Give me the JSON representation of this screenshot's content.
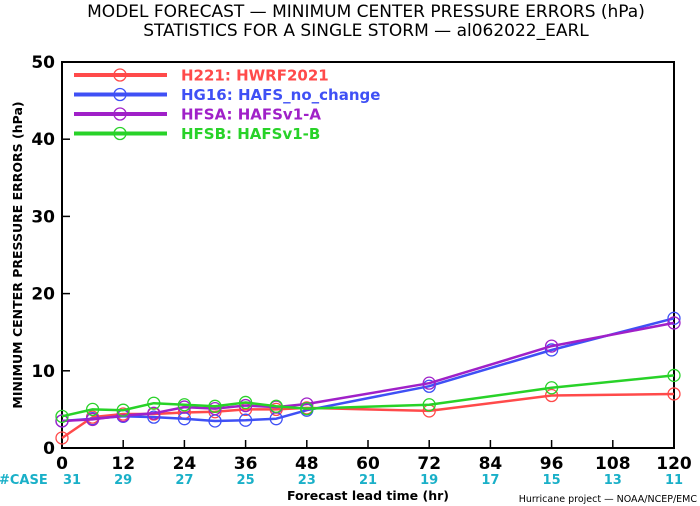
{
  "chart_data": {
    "type": "line",
    "title": "MODEL FORECAST — MINIMUM CENTER PRESSURE ERRORS (hPa)",
    "subtitle": "STATISTICS FOR A SINGLE STORM — al062022_EARL",
    "xlabel": "Forecast lead time (hr)",
    "ylabel": "MINIMUM CENTER PRESSURE ERRORS (hPa)",
    "xlim": [
      0,
      120
    ],
    "ylim": [
      0,
      50
    ],
    "x_ticks": [
      0,
      12,
      24,
      36,
      48,
      60,
      72,
      84,
      96,
      108,
      120
    ],
    "y_ticks": [
      0,
      10,
      20,
      30,
      40,
      50
    ],
    "grid": false,
    "legend_position": "top-left",
    "case_label": "#CASE",
    "case_counts": [
      "31",
      "29",
      "27",
      "25",
      "23",
      "21",
      "19",
      "17",
      "15",
      "13",
      "11"
    ],
    "credit": "Hurricane project — NOAA/NCEP/EMC",
    "series": [
      {
        "name": "H221:  HWRF2021",
        "color": "#ff4a4a",
        "x": [
          0,
          6,
          12,
          18,
          24,
          30,
          36,
          42,
          48,
          72,
          96,
          120
        ],
        "values": [
          1.3,
          4.0,
          4.4,
          4.4,
          4.6,
          4.7,
          5.0,
          5.0,
          5.2,
          4.8,
          6.8,
          7.0
        ]
      },
      {
        "name": "HG16:  HAFS_no_change",
        "color": "#3f50f5",
        "x": [
          0,
          6,
          12,
          18,
          24,
          30,
          36,
          42,
          48,
          72,
          96,
          120
        ],
        "values": [
          3.5,
          3.8,
          4.1,
          4.0,
          3.8,
          3.5,
          3.6,
          3.8,
          4.9,
          8.0,
          12.7,
          16.8
        ]
      },
      {
        "name": "HFSA:  HAFSv1-A",
        "color": "#a020c8",
        "x": [
          0,
          6,
          12,
          18,
          24,
          30,
          36,
          42,
          48,
          72,
          96,
          120
        ],
        "values": [
          3.5,
          3.7,
          4.2,
          4.5,
          5.3,
          5.1,
          5.5,
          5.3,
          5.7,
          8.4,
          13.2,
          16.2
        ]
      },
      {
        "name": "HFSB:  HAFSv1-B",
        "color": "#28d228",
        "x": [
          0,
          6,
          12,
          18,
          24,
          30,
          36,
          42,
          48,
          72,
          96,
          120
        ],
        "values": [
          4.1,
          5.0,
          4.9,
          5.8,
          5.6,
          5.4,
          5.9,
          5.4,
          5.1,
          5.6,
          7.8,
          9.4
        ]
      }
    ]
  }
}
